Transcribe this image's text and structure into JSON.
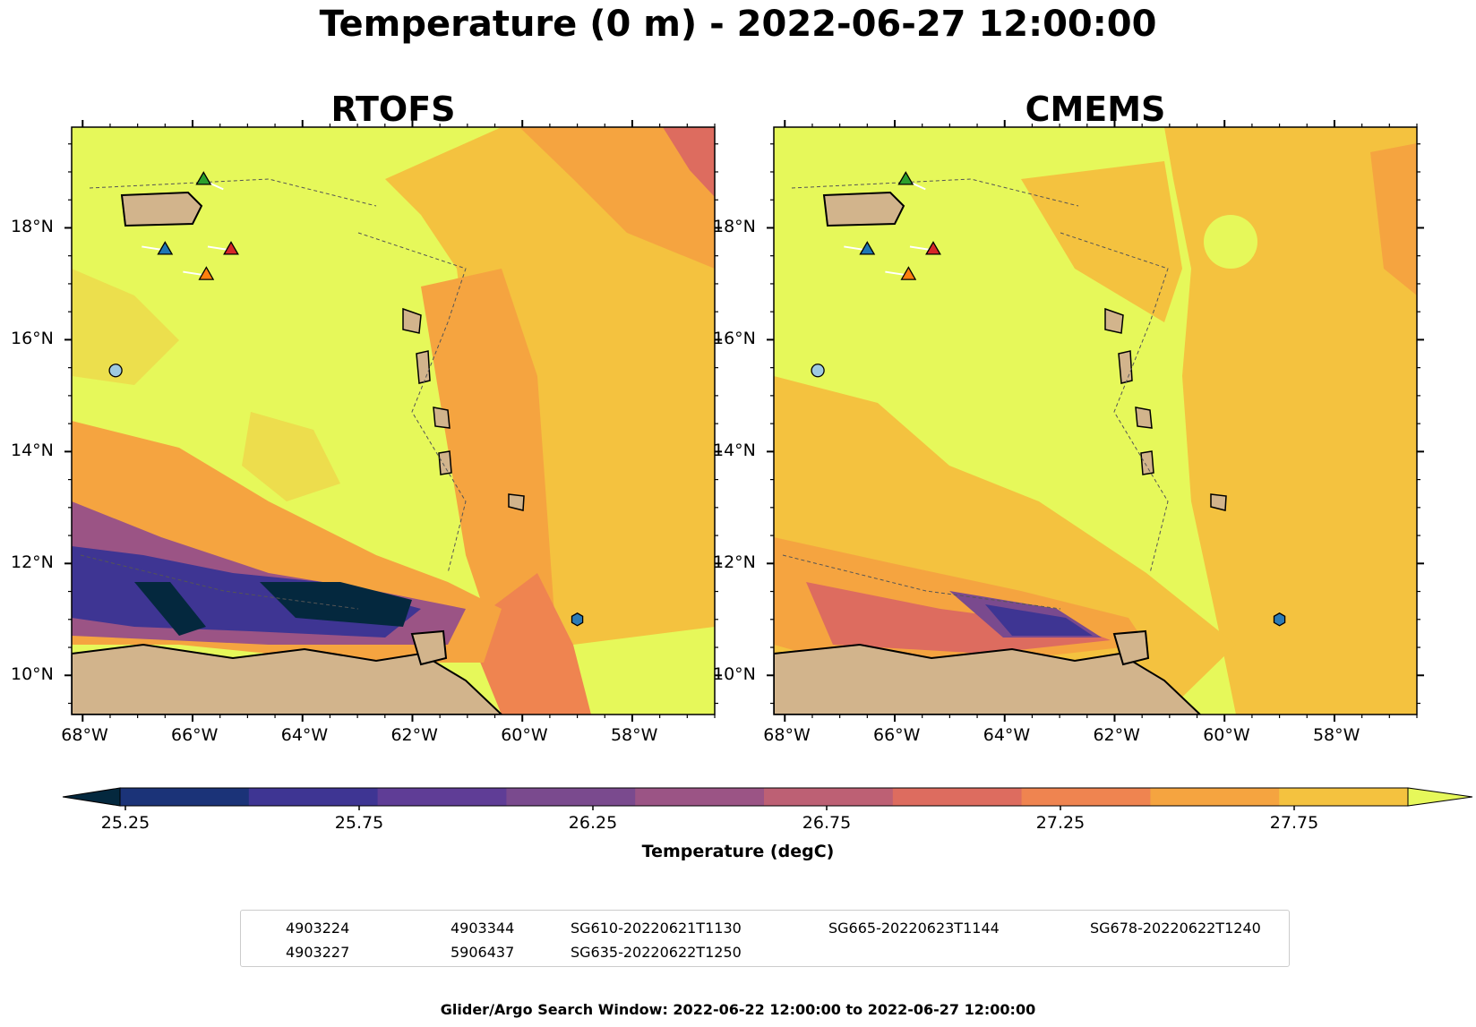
{
  "title": "Temperature (0 m) - 2022-06-27 12:00:00",
  "panels": [
    {
      "title": "RTOFS"
    },
    {
      "title": "CMEMS"
    }
  ],
  "x_ticks": [
    "68°W",
    "66°W",
    "64°W",
    "62°W",
    "60°W",
    "58°W"
  ],
  "y_ticks": [
    "18°N",
    "16°N",
    "14°N",
    "12°N",
    "10°N"
  ],
  "colorbar": {
    "label": "Temperature (degC)",
    "ticks": [
      "25.25",
      "25.75",
      "26.25",
      "26.75",
      "27.25",
      "27.75"
    ],
    "colors": [
      "#04283e",
      "#1b3378",
      "#3e3593",
      "#5f3d96",
      "#7a4a8e",
      "#9b5485",
      "#bd6074",
      "#dd6c5f",
      "#ef8450",
      "#f5a440",
      "#f4c23f",
      "#e6f85a"
    ]
  },
  "legend": [
    {
      "label": "4903224",
      "marker": "circle",
      "color": "#2c7bb6"
    },
    {
      "label": "4903227",
      "marker": "hexagon",
      "color": "#2c7bb6"
    },
    {
      "label": "4903344",
      "marker": "pentagon",
      "color": "#2c7bb6"
    },
    {
      "label": "5906437",
      "marker": "circle",
      "color": "#9ecae1"
    },
    {
      "label": "SG610-20220621T1130",
      "marker": "triangle",
      "color": "#1f77b4"
    },
    {
      "label": "SG635-20220622T1250",
      "marker": "triangle",
      "color": "#ff7f0e"
    },
    {
      "label": "SG665-20220623T1144",
      "marker": "triangle",
      "color": "#2ca02c"
    },
    {
      "label": "SG678-20220622T1240",
      "marker": "triangle",
      "color": "#d62728"
    }
  ],
  "footer": "Glider/Argo Search Window: 2022-06-22 12:00:00 to 2022-06-27 12:00:00",
  "chart_data": {
    "type": "heatmap",
    "variable": "Temperature",
    "depth": "0 m",
    "unit": "degC",
    "xlim": [
      -68.2,
      -56.5
    ],
    "ylim": [
      9.3,
      19.8
    ],
    "colorbar_range": [
      25.0,
      28.0
    ],
    "markers": [
      {
        "name": "5906437",
        "lon": -67.4,
        "lat": 15.45
      },
      {
        "name": "4903227",
        "lon": -59.0,
        "lat": 11.0
      },
      {
        "name": "SG610-20220621T1130",
        "lon": -66.5,
        "lat": 17.6
      },
      {
        "name": "SG635-20220622T1250",
        "lon": -65.75,
        "lat": 17.15
      },
      {
        "name": "SG665-20220623T1144",
        "lon": -65.8,
        "lat": 18.85
      },
      {
        "name": "SG678-20220622T1240",
        "lon": -65.3,
        "lat": 17.6
      }
    ]
  }
}
